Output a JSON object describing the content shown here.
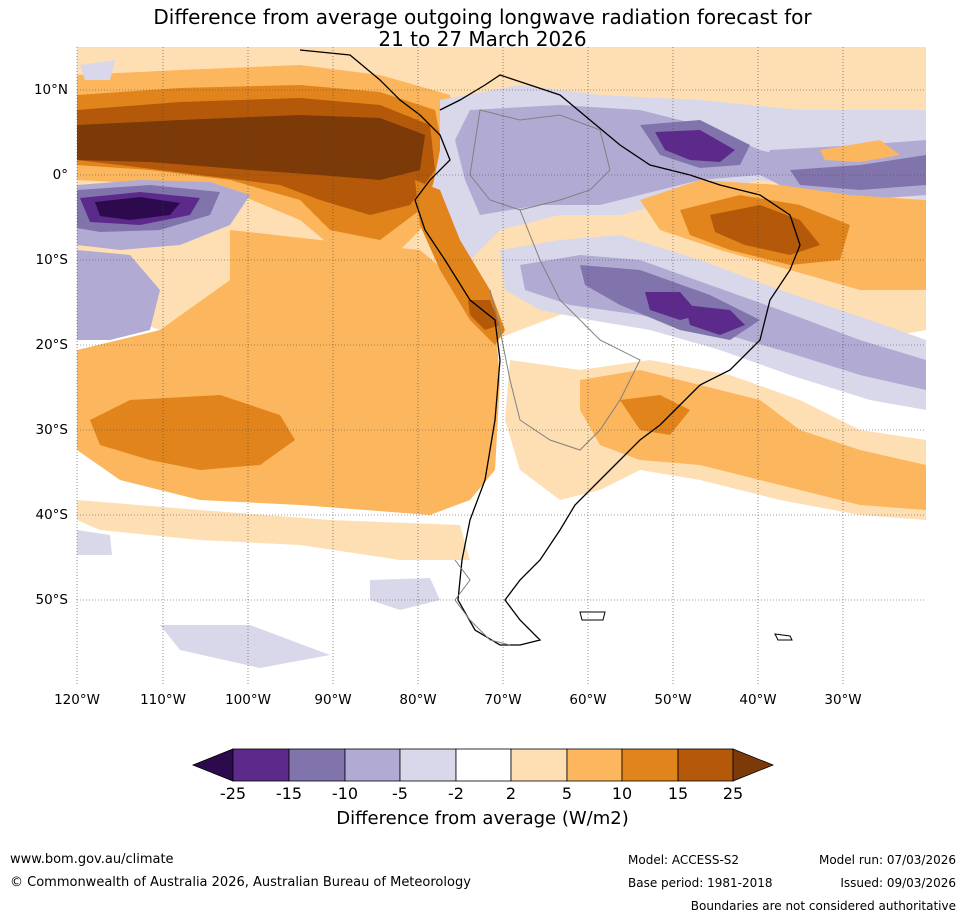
{
  "title": {
    "line1": "Difference from average outgoing longwave radiation forecast for",
    "line2": "21 to 27 March 2026"
  },
  "map": {
    "lat_labels": [
      "10°N",
      "0°",
      "10°S",
      "20°S",
      "30°S",
      "40°S",
      "50°S"
    ],
    "lon_labels": [
      "120°W",
      "110°W",
      "100°W",
      "90°W",
      "80°W",
      "70°W",
      "60°W",
      "50°W",
      "40°W",
      "30°W"
    ]
  },
  "colorbar": {
    "title": "Difference from average (W/m2)",
    "ticks": [
      "-25",
      "-15",
      "-10",
      "-5",
      "-2",
      "2",
      "5",
      "10",
      "15",
      "25"
    ],
    "colors": {
      "lt_-25": "#2d0a4e",
      "-25_-15": "#5c2a8a",
      "-15_-10": "#8174ad",
      "-10_-5": "#b1abd3",
      "-5_-2": "#d8d8ea",
      "-2_2": "#ffffff",
      "2_5": "#fedfb3",
      "5_10": "#fbb65e",
      "10_15": "#e1841c",
      "15_25": "#b4580a",
      "gt_25": "#7b3a07"
    }
  },
  "footer": {
    "website": "www.bom.gov.au/climate",
    "copyright": "© Commonwealth of Australia 2026, Australian Bureau of Meteorology",
    "model": "Model: ACCESS-S2",
    "base_period": "Base period: 1981-2018",
    "model_run": "Model run: 07/03/2026",
    "issued": "Issued: 09/03/2026",
    "disclaimer": "Boundaries are not considered authoritative"
  }
}
